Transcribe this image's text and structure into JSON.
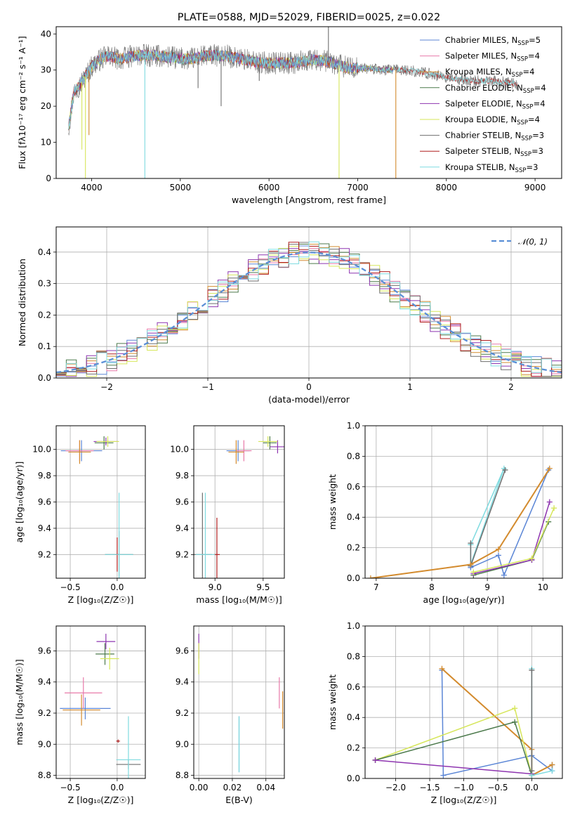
{
  "colors": {
    "Chabrier MILES": "#5b86d6",
    "Salpeter MILES": "#e87aa9",
    "Kroupa MILES": "#d38b2e",
    "Chabrier ELODIE": "#4c7a4c",
    "Salpeter ELODIE": "#8e35b0",
    "Kroupa ELODIE": "#d6e65a",
    "Chabrier STELIB": "#6e6e6e",
    "Salpeter STELIB": "#b01e1e",
    "Kroupa STELIB": "#7fdbe0",
    "normal": "#5b8fd6",
    "accent_line": "#e07a30"
  },
  "chart_data": [
    {
      "id": "spectrum",
      "type": "line",
      "title": "PLATE=0588, MJD=52029, FIBERID=0025, z=0.022",
      "xlabel": "wavelength [Angstrom, rest frame]",
      "ylabel": "Flux [fλ10⁻¹⁷ erg cm⁻² s⁻¹ A⁻¹]",
      "xlim": [
        3600,
        9300
      ],
      "ylim": [
        0,
        42
      ],
      "xticks": [
        4000,
        5000,
        6000,
        7000,
        8000,
        9000
      ],
      "yticks": [
        0,
        10,
        20,
        30,
        40
      ],
      "grid": false,
      "legend_position": "top-right",
      "legend": [
        {
          "label": "Chabrier MILES, N",
          "sub": "SSP",
          "tail": "=5"
        },
        {
          "label": "Salpeter MILES, N",
          "sub": "SSP",
          "tail": "=4"
        },
        {
          "label": "Kroupa MILES, N",
          "sub": "SSP",
          "tail": "=4"
        },
        {
          "label": "Chabrier ELODIE, N",
          "sub": "SSP",
          "tail": "=4"
        },
        {
          "label": "Salpeter ELODIE, N",
          "sub": "SSP",
          "tail": "=4"
        },
        {
          "label": "Kroupa ELODIE, N",
          "sub": "SSP",
          "tail": "=4"
        },
        {
          "label": "Chabrier STELIB, N",
          "sub": "SSP",
          "tail": "=3"
        },
        {
          "label": "Salpeter STELIB, N",
          "sub": "SSP",
          "tail": "=3"
        },
        {
          "label": "Kroupa STELIB, N",
          "sub": "SSP",
          "tail": "=3"
        }
      ],
      "continuum": [
        [
          3740,
          14
        ],
        [
          3800,
          24
        ],
        [
          3900,
          27
        ],
        [
          4000,
          31
        ],
        [
          4100,
          33
        ],
        [
          4200,
          34
        ],
        [
          4300,
          33
        ],
        [
          4500,
          34
        ],
        [
          4700,
          34
        ],
        [
          4900,
          33.5
        ],
        [
          5100,
          33
        ],
        [
          5300,
          34
        ],
        [
          5500,
          34
        ],
        [
          5700,
          33
        ],
        [
          5900,
          32
        ],
        [
          6100,
          32
        ],
        [
          6300,
          32
        ],
        [
          6500,
          33
        ],
        [
          6700,
          32
        ],
        [
          6900,
          30.5
        ],
        [
          7100,
          30.5
        ],
        [
          7300,
          30
        ],
        [
          7500,
          30
        ],
        [
          7700,
          29.5
        ],
        [
          7900,
          28.5
        ],
        [
          8100,
          27.5
        ],
        [
          8300,
          27
        ],
        [
          8500,
          27
        ],
        [
          8700,
          26.5
        ],
        [
          8800,
          26
        ]
      ],
      "spikes": [
        [
          3890,
          8,
          "Kroupa ELODIE"
        ],
        [
          3930,
          0,
          "Kroupa ELODIE"
        ],
        [
          3970,
          12,
          "Kroupa MILES"
        ],
        [
          4600,
          0,
          "Kroupa STELIB"
        ],
        [
          5460,
          20,
          "Chabrier STELIB"
        ],
        [
          6790,
          0,
          "Kroupa ELODIE"
        ],
        [
          7430,
          0,
          "Kroupa MILES"
        ],
        [
          6670,
          42,
          "Chabrier STELIB"
        ],
        [
          5200,
          25,
          "Chabrier STELIB"
        ],
        [
          5890,
          27,
          "Chabrier STELIB"
        ]
      ]
    },
    {
      "id": "residuals",
      "type": "line",
      "xlabel": "(data-model)/error",
      "ylabel": "Normed distribution",
      "xlim": [
        -2.5,
        2.5
      ],
      "ylim": [
        0,
        0.48
      ],
      "xticks": [
        -2,
        -1,
        0,
        1,
        2
      ],
      "yticks": [
        0.0,
        0.1,
        0.2,
        0.3,
        0.4
      ],
      "grid": true,
      "legend_position": "top-right",
      "legend_label": "𝒩(0, 1)",
      "bin_width": 0.1
    },
    {
      "id": "age_vs_Z",
      "type": "scatter",
      "xlabel": "Z [log₁₀(Z/Z☉)]",
      "ylabel": "age  [log₁₀(age/yr)]",
      "xlim": [
        -0.65,
        0.3
      ],
      "ylim": [
        9.02,
        10.18
      ],
      "xticks": [
        -0.5,
        0.0
      ],
      "yticks": [
        9.2,
        9.4,
        9.6,
        9.8,
        10.0
      ],
      "grid": true,
      "points": [
        {
          "series": "Chabrier MILES",
          "x": -0.38,
          "y": 9.99,
          "ex": 0.22,
          "ey": 0.08
        },
        {
          "series": "Salpeter MILES",
          "x": -0.4,
          "y": 9.99,
          "ex": 0.15,
          "ey": 0.08
        },
        {
          "series": "Kroupa MILES",
          "x": -0.4,
          "y": 9.98,
          "ex": 0.12,
          "ey": 0.09
        },
        {
          "series": "Chabrier ELODIE",
          "x": -0.14,
          "y": 10.05,
          "ex": 0.1,
          "ey": 0.05
        },
        {
          "series": "Salpeter ELODIE",
          "x": -0.12,
          "y": 10.06,
          "ex": 0.13,
          "ey": 0.03
        },
        {
          "series": "Kroupa ELODIE",
          "x": -0.1,
          "y": 10.06,
          "ex": 0.12,
          "ey": 0.04
        },
        {
          "series": "Chabrier STELIB",
          "x": 0.02,
          "y": 9.2,
          "ex": 0.15,
          "ey": 0.18
        },
        {
          "series": "Salpeter STELIB",
          "x": 0.0,
          "y": 9.2,
          "ex": 0.02,
          "ey": 0.13
        },
        {
          "series": "Kroupa STELIB",
          "x": 0.02,
          "y": 9.2,
          "ex": 0.15,
          "ey": 0.47
        }
      ]
    },
    {
      "id": "age_vs_mass",
      "type": "scatter",
      "xlabel": "mass [log₁₀(M/M☉)]",
      "ylabel": "",
      "xlim": [
        8.78,
        9.72
      ],
      "ylim": [
        9.02,
        10.18
      ],
      "xticks": [
        9.0,
        9.5
      ],
      "yticks": [
        9.2,
        9.4,
        9.6,
        9.8,
        10.0
      ],
      "grid": true,
      "points": [
        {
          "series": "Chabrier MILES",
          "x": 9.24,
          "y": 9.99,
          "ex": 0.12,
          "ey": 0.08
        },
        {
          "series": "Salpeter MILES",
          "x": 9.3,
          "y": 9.99,
          "ex": 0.08,
          "ey": 0.08
        },
        {
          "series": "Kroupa MILES",
          "x": 9.22,
          "y": 9.98,
          "ex": 0.08,
          "ey": 0.09
        },
        {
          "series": "Chabrier ELODIE",
          "x": 9.57,
          "y": 10.05,
          "ex": 0.07,
          "ey": 0.05
        },
        {
          "series": "Salpeter ELODIE",
          "x": 9.65,
          "y": 10.02,
          "ex": 0.08,
          "ey": 0.05
        },
        {
          "series": "Kroupa ELODIE",
          "x": 9.55,
          "y": 10.06,
          "ex": 0.1,
          "ey": 0.04
        },
        {
          "series": "Chabrier STELIB",
          "x": 8.87,
          "y": 9.2,
          "ex": 0.1,
          "ey": 0.47
        },
        {
          "series": "Salpeter STELIB",
          "x": 9.02,
          "y": 9.2,
          "ex": 0.03,
          "ey": 0.28
        },
        {
          "series": "Kroupa STELIB",
          "x": 8.9,
          "y": 9.2,
          "ex": 0.1,
          "ey": 0.47
        }
      ]
    },
    {
      "id": "mass_weight_vs_age",
      "type": "line",
      "xlabel": "age  [log₁₀(age/yr)]",
      "ylabel": "mass weight",
      "xlim": [
        6.8,
        10.35
      ],
      "ylim": [
        0,
        1
      ],
      "xticks": [
        7,
        8,
        9,
        10
      ],
      "yticks": [
        0.0,
        0.2,
        0.4,
        0.6,
        0.8,
        1.0
      ],
      "grid": true,
      "lines": [
        {
          "series": "Kroupa STELIB",
          "points": [
            [
              8.7,
              0.22
            ],
            [
              8.7,
              0.09
            ],
            [
              9.3,
              0.72
            ],
            [
              8.7,
              0.22
            ]
          ]
        },
        {
          "series": "Chabrier STELIB",
          "points": [
            [
              8.7,
              0.23
            ],
            [
              8.7,
              0.08
            ],
            [
              9.32,
              0.71
            ]
          ]
        },
        {
          "series": "Chabrier MILES",
          "points": [
            [
              8.7,
              0.07
            ],
            [
              9.2,
              0.15
            ],
            [
              9.3,
              0.02
            ],
            [
              10.1,
              0.71
            ]
          ]
        },
        {
          "series": "Kroupa MILES",
          "points": [
            [
              6.9,
              0.0
            ],
            [
              8.7,
              0.09
            ],
            [
              9.2,
              0.19
            ],
            [
              10.12,
              0.72
            ]
          ]
        },
        {
          "series": "Chabrier ELODIE",
          "points": [
            [
              8.75,
              0.02
            ],
            [
              9.8,
              0.12
            ],
            [
              10.1,
              0.37
            ]
          ]
        },
        {
          "series": "Salpeter ELODIE",
          "points": [
            [
              8.75,
              0.03
            ],
            [
              9.8,
              0.12
            ],
            [
              10.12,
              0.5
            ]
          ]
        },
        {
          "series": "Kroupa ELODIE",
          "points": [
            [
              8.75,
              0.04
            ],
            [
              9.8,
              0.13
            ],
            [
              10.2,
              0.46
            ]
          ]
        }
      ]
    },
    {
      "id": "mass_vs_Z",
      "type": "scatter",
      "xlabel": "Z [log₁₀(Z/Z☉)]",
      "ylabel": "mass [log₁₀(M/M☉)]",
      "xlim": [
        -0.65,
        0.3
      ],
      "ylim": [
        8.78,
        9.76
      ],
      "xticks": [
        -0.5,
        0.0
      ],
      "yticks": [
        8.8,
        9.0,
        9.2,
        9.4,
        9.6
      ],
      "grid": true,
      "points": [
        {
          "series": "Chabrier MILES",
          "x": -0.34,
          "y": 9.23,
          "ex": 0.27,
          "ey": 0.07
        },
        {
          "series": "Salpeter MILES",
          "x": -0.36,
          "y": 9.33,
          "ex": 0.2,
          "ey": 0.1
        },
        {
          "series": "Kroupa MILES",
          "x": -0.38,
          "y": 9.22,
          "ex": 0.2,
          "ey": 0.1
        },
        {
          "series": "Chabrier ELODIE",
          "x": -0.13,
          "y": 9.58,
          "ex": 0.1,
          "ey": 0.07
        },
        {
          "series": "Salpeter ELODIE",
          "x": -0.12,
          "y": 9.66,
          "ex": 0.1,
          "ey": 0.05
        },
        {
          "series": "Kroupa ELODIE",
          "x": -0.08,
          "y": 9.55,
          "ex": 0.1,
          "ey": 0.07
        },
        {
          "series": "Chabrier STELIB",
          "x": 0.12,
          "y": 8.87,
          "ex": 0.13,
          "ey": 0.03
        },
        {
          "series": "Salpeter STELIB",
          "x": 0.01,
          "y": 9.02,
          "ex": 0.02,
          "ey": 0.01
        },
        {
          "series": "Kroupa STELIB",
          "x": 0.12,
          "y": 8.9,
          "ex": 0.13,
          "ey": 0.28
        }
      ]
    },
    {
      "id": "mass_vs_ebv",
      "type": "scatter",
      "xlabel": "E(B-V)",
      "ylabel": "",
      "xlim": [
        -0.003,
        0.051
      ],
      "ylim": [
        8.78,
        9.76
      ],
      "xticks": [
        0.0,
        0.02,
        0.04
      ],
      "yticks": [
        8.8,
        9.0,
        9.2,
        9.4,
        9.6
      ],
      "grid": true,
      "points": [
        {
          "series": "Salpeter ELODIE",
          "x": 0.0,
          "y": 9.63,
          "ex": 0.0,
          "ey": 0.08
        },
        {
          "series": "Kroupa ELODIE",
          "x": 0.0,
          "y": 9.55,
          "ex": 0.0,
          "ey": 0.1
        },
        {
          "series": "Chabrier MILES",
          "x": 0.024,
          "y": 9.0,
          "ex": 0.0,
          "ey": 0.18
        },
        {
          "series": "Kroupa STELIB",
          "x": 0.024,
          "y": 9.0,
          "ex": 0.0,
          "ey": 0.18
        },
        {
          "series": "Salpeter MILES",
          "x": 0.048,
          "y": 9.33,
          "ex": 0.0,
          "ey": 0.1
        },
        {
          "series": "Kroupa MILES",
          "x": 0.05,
          "y": 9.22,
          "ex": 0.0,
          "ey": 0.12
        }
      ]
    },
    {
      "id": "mass_weight_vs_Z",
      "type": "line",
      "xlabel": "Z [log₁₀(Z/Z☉)]",
      "ylabel": "mass weight",
      "xlim": [
        -2.45,
        0.45
      ],
      "ylim": [
        0,
        1
      ],
      "xticks": [
        -2.0,
        -1.5,
        -1.0,
        -0.5,
        0.0
      ],
      "yticks": [
        0.0,
        0.2,
        0.4,
        0.6,
        0.8,
        1.0
      ],
      "grid": true,
      "lines": [
        {
          "series": "Chabrier MILES",
          "points": [
            [
              -1.32,
              0.71
            ],
            [
              -1.3,
              0.02
            ],
            [
              0.0,
              0.15
            ],
            [
              0.3,
              0.05
            ],
            [
              0.3,
              0.09
            ]
          ]
        },
        {
          "series": "Kroupa MILES",
          "points": [
            [
              -1.32,
              0.72
            ],
            [
              0.0,
              0.19
            ],
            [
              0.0,
              0.02
            ],
            [
              0.3,
              0.09
            ]
          ]
        },
        {
          "series": "Kroupa ELODIE",
          "points": [
            [
              -2.3,
              0.12
            ],
            [
              -0.25,
              0.46
            ],
            [
              0.0,
              0.02
            ]
          ]
        },
        {
          "series": "Chabrier ELODIE",
          "points": [
            [
              -2.3,
              0.12
            ],
            [
              -0.25,
              0.37
            ],
            [
              0.0,
              0.02
            ]
          ]
        },
        {
          "series": "Salpeter ELODIE",
          "points": [
            [
              -2.3,
              0.12
            ],
            [
              0.0,
              0.03
            ]
          ]
        },
        {
          "series": "Kroupa STELIB",
          "points": [
            [
              0.0,
              0.72
            ],
            [
              0.0,
              0.02
            ],
            [
              0.3,
              0.05
            ]
          ]
        },
        {
          "series": "Chabrier STELIB",
          "points": [
            [
              0.0,
              0.71
            ],
            [
              0.0,
              0.05
            ]
          ]
        }
      ]
    }
  ]
}
